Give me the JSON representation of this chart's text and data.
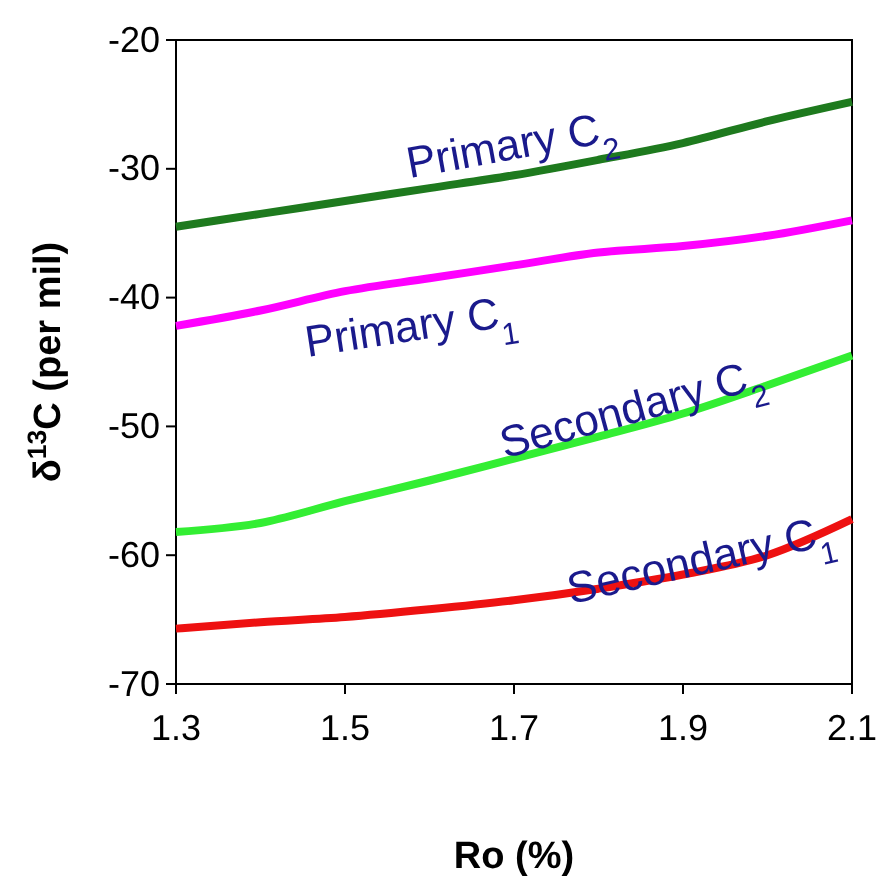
{
  "chart_data": {
    "type": "line",
    "xlabel": "Ro (%)",
    "ylabel": "δ$^{13}$C (per mil)",
    "xlim": [
      1.3,
      2.1
    ],
    "ylim": [
      -70,
      -20
    ],
    "xticks": [
      {
        "value": 1.3,
        "label": "1.3"
      },
      {
        "value": 1.5,
        "label": "1.5"
      },
      {
        "value": 1.7,
        "label": "1.7"
      },
      {
        "value": 1.9,
        "label": "1.9"
      },
      {
        "value": 2.1,
        "label": "2.1"
      }
    ],
    "yticks": [
      -70,
      -60,
      -50,
      -40,
      -30,
      -20
    ],
    "grid": false,
    "marker": "none",
    "line_style": "solid",
    "x": [
      1.3,
      1.4,
      1.5,
      1.6,
      1.7,
      1.8,
      1.9,
      2.0,
      2.1
    ],
    "series": [
      {
        "name": "Primary C$_{2}$",
        "color": "#1e7a1e",
        "values": [
          -34.5,
          -33.5,
          -32.5,
          -31.5,
          -30.5,
          -29.3,
          -28,
          -26.3,
          -24.8
        ]
      },
      {
        "name": "Primary C$_{1}$",
        "color": "#ff00ff",
        "values": [
          -42.2,
          -41,
          -39.5,
          -38.5,
          -37.5,
          -36.5,
          -36,
          -35.2,
          -34
        ]
      },
      {
        "name": "Secondary C$_{2}$",
        "color": "#33ee33",
        "values": [
          -58.2,
          -57.5,
          -55.8,
          -54.2,
          -52.5,
          -50.8,
          -49,
          -46.8,
          -44.5
        ]
      },
      {
        "name": "Secondary C$_{1}$",
        "color": "#ee1111",
        "values": [
          -65.7,
          -65.2,
          -64.8,
          -64.2,
          -63.5,
          -62.6,
          -61.5,
          -60,
          -57.2
        ]
      }
    ]
  }
}
